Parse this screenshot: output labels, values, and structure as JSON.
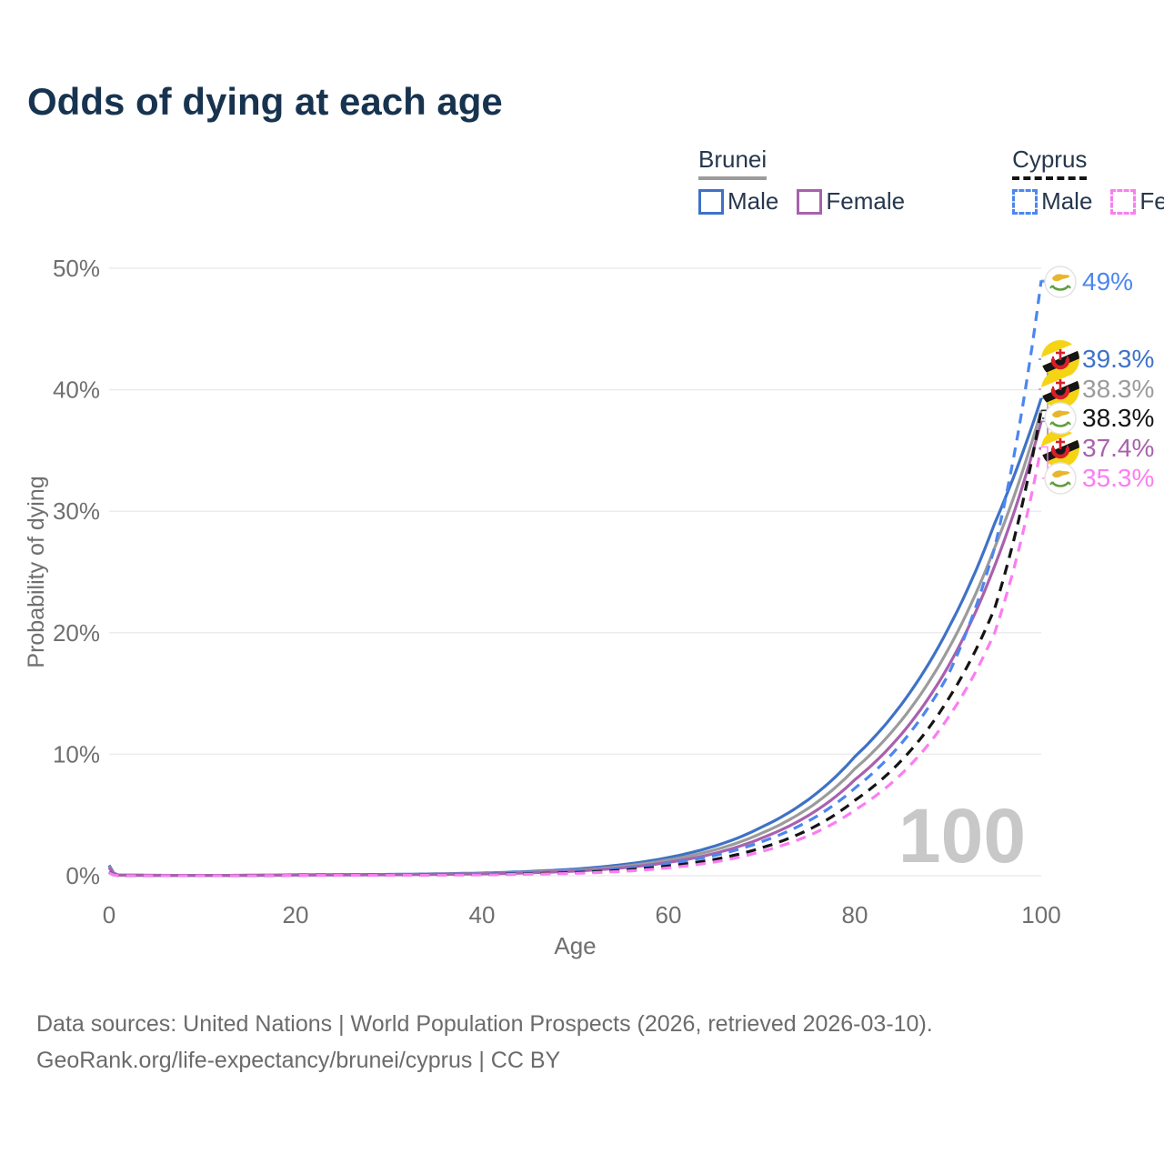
{
  "title": "Odds of dying at each age",
  "legend": {
    "groups": [
      {
        "country": "Brunei",
        "underline_color": "#9b9b9b",
        "underline_style": "solid",
        "items": [
          {
            "label": "Male",
            "color": "#3f72c6",
            "border_style": "solid"
          },
          {
            "label": "Female",
            "color": "#a961ad",
            "border_style": "solid"
          }
        ]
      },
      {
        "country": "Cyprus",
        "underline_color": "#141414",
        "underline_style": "dashed",
        "items": [
          {
            "label": "Male",
            "color": "#4c86f0",
            "border_style": "dashed"
          },
          {
            "label": "Female",
            "color": "#fb7df2",
            "border_style": "dashed"
          }
        ]
      }
    ]
  },
  "watermark": "100",
  "chart_data": {
    "type": "line",
    "title": "Odds of dying at each age",
    "xlabel": "Age",
    "ylabel": "Probability of dying",
    "xlim": [
      0,
      100
    ],
    "ylim": [
      0,
      50
    ],
    "grid": true,
    "x_ticks": [
      0,
      20,
      40,
      60,
      80,
      100
    ],
    "y_ticks": [
      {
        "value": 0,
        "label": "0%"
      },
      {
        "value": 10,
        "label": "10%"
      },
      {
        "value": 20,
        "label": "20%"
      },
      {
        "value": 30,
        "label": "30%"
      },
      {
        "value": 40,
        "label": "40%"
      },
      {
        "value": 50,
        "label": "50%"
      }
    ],
    "ages": [
      0,
      1,
      10,
      20,
      30,
      40,
      50,
      60,
      70,
      80,
      90,
      95,
      100
    ],
    "series": [
      {
        "name": "Brunei Male",
        "country": "Brunei",
        "sex": "Male",
        "color": "#3f72c6",
        "dash": false,
        "flag": "brunei",
        "end_label": "39.3%",
        "end_value": 39.3,
        "label_slot": 1,
        "values": [
          0.85,
          0.055,
          0.022,
          0.08,
          0.11,
          0.22,
          0.55,
          1.5,
          4.0,
          9.8,
          20.3,
          29.0,
          39.3
        ]
      },
      {
        "name": "Brunei",
        "country": "Brunei",
        "sex": "Both",
        "color": "#9b9b9b",
        "dash": false,
        "flag": "brunei",
        "end_label": "38.3%",
        "end_value": 38.3,
        "label_slot": 2,
        "values": [
          0.75,
          0.05,
          0.02,
          0.065,
          0.09,
          0.18,
          0.45,
          1.3,
          3.5,
          8.8,
          18.6,
          27.0,
          38.3
        ]
      },
      {
        "name": "Brunei Female",
        "country": "Brunei",
        "sex": "Female",
        "color": "#a961ad",
        "dash": false,
        "flag": "brunei",
        "end_label": "37.4%",
        "end_value": 37.4,
        "label_slot": 4,
        "values": [
          0.65,
          0.045,
          0.018,
          0.05,
          0.08,
          0.15,
          0.38,
          1.1,
          3.1,
          7.9,
          17.2,
          25.5,
          37.4
        ]
      },
      {
        "name": "Cyprus Male",
        "country": "Cyprus",
        "sex": "Male",
        "color": "#4c86f0",
        "dash": true,
        "flag": "cyprus",
        "end_label": "49%",
        "end_value": 49.0,
        "label_slot": 0,
        "values": [
          0.3,
          0.02,
          0.01,
          0.05,
          0.07,
          0.13,
          0.33,
          1.0,
          2.8,
          7.2,
          16.5,
          27.0,
          49.0
        ]
      },
      {
        "name": "Cyprus",
        "country": "Cyprus",
        "sex": "Both",
        "color": "#141414",
        "dash": true,
        "flag": "cyprus",
        "end_label": "38.3%",
        "end_value": 38.3,
        "label_slot": 3,
        "values": [
          0.27,
          0.018,
          0.009,
          0.04,
          0.05,
          0.1,
          0.26,
          0.8,
          2.3,
          6.2,
          14.5,
          22.0,
          38.3
        ]
      },
      {
        "name": "Cyprus Female",
        "country": "Cyprus",
        "sex": "Female",
        "color": "#fb7df2",
        "dash": true,
        "flag": "cyprus",
        "end_label": "35.3%",
        "end_value": 35.3,
        "label_slot": 5,
        "values": [
          0.24,
          0.015,
          0.008,
          0.03,
          0.04,
          0.08,
          0.2,
          0.65,
          2.0,
          5.4,
          13.0,
          20.0,
          35.3
        ]
      }
    ]
  },
  "footer": {
    "line1": "Data sources: United Nations | World Population Prospects (2026, retrieved 2026-03-10).",
    "line2": "GeoRank.org/life-expectancy/brunei/cyprus | CC BY"
  }
}
